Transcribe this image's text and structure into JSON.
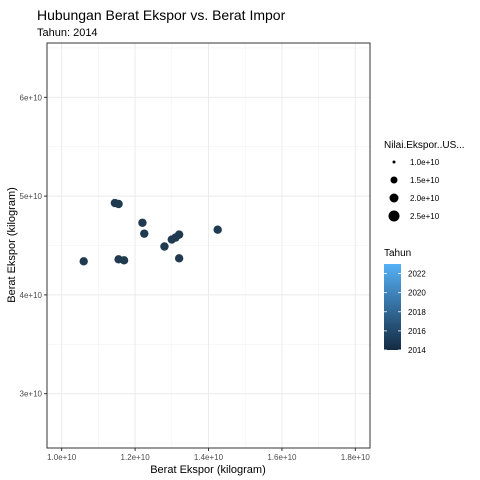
{
  "chart_data": {
    "type": "scatter",
    "title": "Hubungan Berat Ekspor vs. Berat Impor",
    "subtitle": "Tahun: 2014",
    "xlabel": "Berat Ekspor (kilogram)",
    "ylabel": "Berat Ekspor (kilogram)",
    "xlim": [
      9600000000.0,
      18400000000.0
    ],
    "ylim": [
      24500000000.0,
      65500000000.0
    ],
    "x_ticks": [
      10000000000.0,
      12000000000.0,
      14000000000.0,
      16000000000.0,
      18000000000.0
    ],
    "x_tick_labels": [
      "1.0e+10",
      "1.2e+10",
      "1.4e+10",
      "1.6e+10",
      "1.8e+10"
    ],
    "y_ticks": [
      30000000000.0,
      40000000000.0,
      50000000000.0,
      60000000000.0
    ],
    "y_tick_labels": [
      "3e+10",
      "4e+10",
      "5e+10",
      "6e+10"
    ],
    "grid": true,
    "legend_placement": "right",
    "point_color": "#203a50",
    "points": [
      {
        "x": 10600000000.0,
        "y": 43400000000.0
      },
      {
        "x": 11450000000.0,
        "y": 49300000000.0
      },
      {
        "x": 11550000000.0,
        "y": 49200000000.0
      },
      {
        "x": 11550000000.0,
        "y": 43600000000.0
      },
      {
        "x": 11700000000.0,
        "y": 43500000000.0
      },
      {
        "x": 12200000000.0,
        "y": 47300000000.0
      },
      {
        "x": 12250000000.0,
        "y": 46200000000.0
      },
      {
        "x": 12800000000.0,
        "y": 44900000000.0
      },
      {
        "x": 13000000000.0,
        "y": 45600000000.0
      },
      {
        "x": 13100000000.0,
        "y": 45800000000.0
      },
      {
        "x": 13200000000.0,
        "y": 46100000000.0
      },
      {
        "x": 13200000000.0,
        "y": 43700000000.0
      },
      {
        "x": 14250000000.0,
        "y": 46600000000.0
      }
    ],
    "size_legend": {
      "title": "Nilai.Ekspor..US...",
      "entries": [
        {
          "label": "1.0e+10",
          "value": 10000000000.0
        },
        {
          "label": "1.5e+10",
          "value": 15000000000.0
        },
        {
          "label": "2.0e+10",
          "value": 20000000000.0
        },
        {
          "label": "2.5e+10",
          "value": 25000000000.0
        }
      ]
    },
    "color_legend": {
      "title": "Tahun",
      "range": [
        2014,
        2023
      ],
      "color_low": "#132b43",
      "color_high": "#56b1f7",
      "ticks": [
        2022,
        2020,
        2018,
        2016,
        2014
      ],
      "tick_labels": [
        "2022",
        "2020",
        "2018",
        "2016",
        "2014"
      ]
    }
  }
}
